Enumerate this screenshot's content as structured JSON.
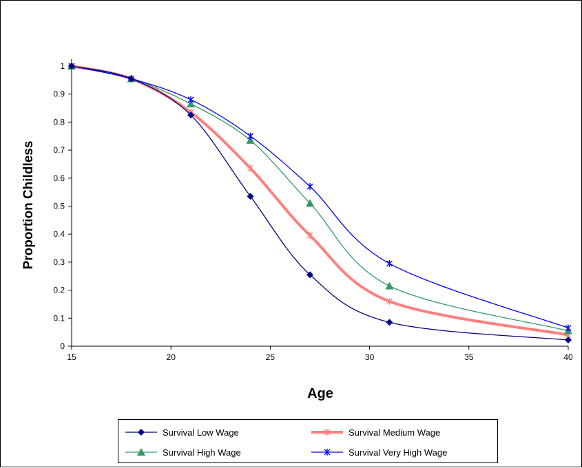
{
  "chart_data": {
    "type": "line",
    "title": "",
    "xlabel": "Age",
    "ylabel": "Proportion Childless",
    "xlim": [
      15,
      40
    ],
    "ylim": [
      0,
      1
    ],
    "x_ticks": [
      "15",
      "20",
      "25",
      "30",
      "35",
      "40"
    ],
    "y_ticks": [
      "0",
      "0.1",
      "0.2",
      "0.3",
      "0.4",
      "0.5",
      "0.6",
      "0.7",
      "0.8",
      "0.9",
      "1"
    ],
    "grid": false,
    "legend_position": "bottom",
    "x": [
      15,
      18,
      21,
      24,
      27,
      31,
      40
    ],
    "series": [
      {
        "name": "Survival Low Wage",
        "color": "#000080",
        "marker": "diamond",
        "values": [
          1.0,
          0.955,
          0.825,
          0.535,
          0.255,
          0.085,
          0.022
        ]
      },
      {
        "name": "Survival Medium Wage",
        "color": "#ff8080",
        "marker": "star",
        "values": [
          1.0,
          0.955,
          0.835,
          0.635,
          0.395,
          0.16,
          0.04
        ]
      },
      {
        "name": "Survival High Wage",
        "color": "#339966",
        "marker": "triangle",
        "values": [
          1.0,
          0.955,
          0.865,
          0.735,
          0.51,
          0.215,
          0.055
        ]
      },
      {
        "name": "Survival Very High Wage",
        "color": "#0000ff",
        "marker": "star",
        "values": [
          1.0,
          0.955,
          0.88,
          0.75,
          0.57,
          0.295,
          0.065
        ]
      }
    ]
  }
}
